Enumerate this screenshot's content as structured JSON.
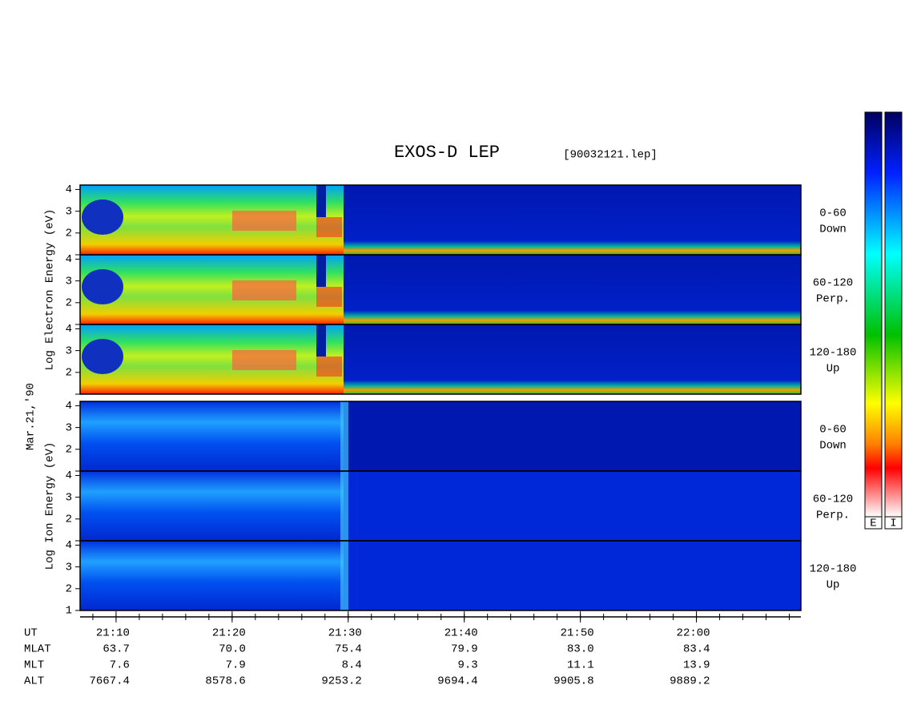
{
  "chart_data": {
    "type": "spectrogram",
    "title": "EXOS-D LEP",
    "subtitle": "[90032121.lep]",
    "date_label": "Mar.21,'90",
    "groups": [
      {
        "ylabel": "Log Electron Energy (eV)",
        "panels": [
          {
            "label": [
              "0-60",
              "Down"
            ]
          },
          {
            "label": [
              "60-120",
              "Perp."
            ]
          },
          {
            "label": [
              "120-180",
              "Up"
            ]
          }
        ]
      },
      {
        "ylabel": "Log Ion Energy (eV)",
        "panels": [
          {
            "label": [
              "0-60",
              "Down"
            ]
          },
          {
            "label": [
              "60-120",
              "Perp."
            ]
          },
          {
            "label": [
              "120-180",
              "Up"
            ]
          }
        ]
      }
    ],
    "ylim": [
      1,
      4.2
    ],
    "yticks": [
      1,
      2,
      3,
      4
    ],
    "xlim": [
      1266.9,
      1329
    ],
    "xticks": [
      {
        "value": 1270,
        "label": "21:10"
      },
      {
        "value": 1280,
        "label": "21:20"
      },
      {
        "value": 1290,
        "label": "21:30"
      },
      {
        "value": 1300,
        "label": "21:40"
      },
      {
        "value": 1310,
        "label": "21:50"
      },
      {
        "value": 1320,
        "label": "22:00"
      }
    ],
    "xminor": [
      1268,
      1270,
      1272,
      1274,
      1276,
      1278,
      1280,
      1282,
      1284,
      1286,
      1288,
      1290,
      1292,
      1294,
      1296,
      1298,
      1300,
      1302,
      1304,
      1306,
      1308,
      1310,
      1312,
      1314,
      1316,
      1318,
      1320,
      1322,
      1324,
      1326,
      1328
    ],
    "ephemeris": [
      {
        "name": "UT"
      },
      {
        "name": "MLAT",
        "values": [
          "63.7",
          "70.0",
          "75.4",
          "79.9",
          "83.0",
          "83.4"
        ]
      },
      {
        "name": "MLT",
        "values": [
          "7.6",
          "7.9",
          "8.4",
          "9.3",
          "11.1",
          "13.9"
        ]
      },
      {
        "name": "ALT",
        "values": [
          "7667.4",
          "8578.6",
          "9253.2",
          "9694.4",
          "9905.8",
          "9889.2"
        ]
      }
    ],
    "colorbar_labels": [
      "E",
      "I"
    ]
  }
}
